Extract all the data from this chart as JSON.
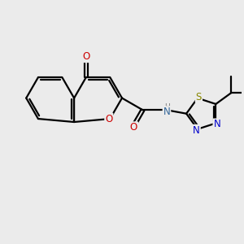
{
  "bg_color": "#ebebeb",
  "bond_color": "#000000",
  "bond_width": 1.6,
  "figsize": [
    3.0,
    3.0
  ],
  "dpi": 100,
  "xlim": [
    0,
    10
  ],
  "ylim": [
    1,
    9
  ]
}
